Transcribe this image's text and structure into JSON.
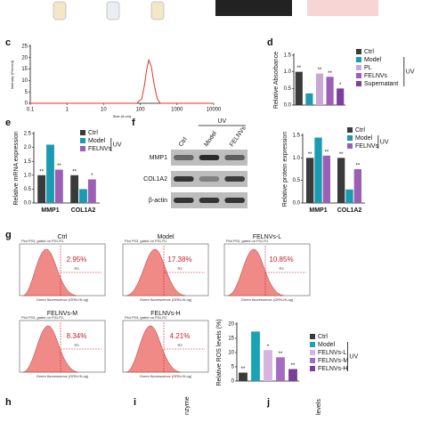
{
  "chart_data": [
    {
      "type": "line",
      "x_label": "Size (d.nm)",
      "y_label": "Intensity (Percent)",
      "log_x": true,
      "x": [
        0.1,
        80,
        110,
        130,
        150,
        170,
        200,
        240,
        290,
        350,
        10000
      ],
      "values": [
        0,
        0,
        2,
        8,
        15,
        19,
        16,
        8,
        2,
        0,
        0
      ],
      "color": "#e0362c",
      "xlim": [
        0.1,
        10000
      ],
      "xticks": [
        0.1,
        1,
        10,
        100,
        1000,
        10000
      ],
      "ylim": [
        0,
        25
      ],
      "yticks": [
        0,
        5,
        10,
        15,
        20,
        25
      ]
    },
    {
      "type": "bar",
      "y_label": "Relative Absorbance",
      "categories": [
        "Ctrl",
        "Model",
        "PL",
        "FELNVs",
        "Supernatant"
      ],
      "values": [
        1.0,
        0.35,
        0.95,
        0.85,
        0.5
      ],
      "colors": [
        "#3a3a3a",
        "#1a9bb0",
        "#c9a8d8",
        "#9b5fb5",
        "#7b3f9a"
      ],
      "significance": [
        "**",
        "",
        "**",
        "**",
        "*"
      ],
      "legend_group": {
        "label": "UV",
        "from": 1,
        "to": 4
      },
      "ylim": [
        0,
        1.5
      ],
      "yticks": [
        {
          "value": 0,
          "label": "0.0"
        },
        0.5,
        {
          "value": 1,
          "label": "1.0"
        },
        1.5
      ]
    },
    {
      "type": "grouped_bar",
      "y_label": "Relative mRNA expression",
      "categories": [
        "MMP1",
        "COL1A2"
      ],
      "series": [
        {
          "name": "Ctrl",
          "color": "#3a3a3a",
          "values": [
            1.0,
            1.0
          ],
          "significance": [
            "**",
            "**"
          ]
        },
        {
          "name": "Model",
          "color": "#1a9bb0",
          "values": [
            2.1,
            0.5
          ],
          "significance": [
            "",
            ""
          ]
        },
        {
          "name": "FELNVs",
          "color": "#9b5fb5",
          "values": [
            1.2,
            0.85
          ],
          "significance": [
            "**",
            "*"
          ]
        }
      ],
      "legend_group": {
        "label": "UV",
        "from": 1,
        "to": 2
      },
      "ylim": [
        0,
        2.5
      ],
      "yticks": [
        {
          "value": 0,
          "label": "0.0"
        },
        0.5,
        {
          "value": 1,
          "label": "1.0"
        },
        1.5,
        {
          "value": 2,
          "label": "2.0"
        },
        2.5
      ]
    },
    {
      "type": "grouped_bar",
      "y_label": "Relative protein expression",
      "categories": [
        "MMP1",
        "COL1A2"
      ],
      "series": [
        {
          "name": "Ctrl",
          "color": "#3a3a3a",
          "values": [
            1.0,
            1.0
          ],
          "significance": [
            "**",
            "**"
          ]
        },
        {
          "name": "Model",
          "color": "#1a9bb0",
          "values": [
            1.45,
            0.3
          ],
          "significance": [
            "",
            ""
          ]
        },
        {
          "name": "FELNVs",
          "color": "#9b5fb5",
          "values": [
            1.05,
            0.75
          ],
          "significance": [
            "**",
            "**"
          ]
        }
      ],
      "legend_group": {
        "label": "UV",
        "from": 1,
        "to": 2
      },
      "ylim": [
        0,
        1.5
      ],
      "yticks": [
        {
          "value": 0,
          "label": "0.0"
        },
        0.5,
        {
          "value": 1,
          "label": "1.0"
        },
        1.5
      ]
    },
    {
      "type": "bar",
      "y_label": "Relative ROS levels (%)",
      "categories": [
        "Ctrl",
        "Model",
        "FELNVs-L",
        "FELNVs-M",
        "FELNVs-H"
      ],
      "values": [
        2.95,
        17.38,
        10.85,
        8.34,
        4.21
      ],
      "colors": [
        "#3a3a3a",
        "#1aa3b5",
        "#d6b3e0",
        "#a36cc0",
        "#7a3f98"
      ],
      "significance": [
        "**",
        "",
        "*",
        "**",
        "**"
      ],
      "legend_group": {
        "label": "UV",
        "from": 1,
        "to": 4
      },
      "ylim": [
        0,
        20
      ],
      "yticks": [
        0,
        5,
        10,
        15,
        20
      ]
    }
  ],
  "panels": [
    "c",
    "d",
    "e",
    "f",
    "g",
    "h",
    "i",
    "j"
  ],
  "blot": {
    "uv": "UV",
    "lanes": [
      "Ctrl",
      "Model",
      "FELNVs"
    ],
    "rows": [
      "MMP1",
      "COL1A2",
      "β-actin"
    ]
  },
  "flow": {
    "subtitle": "Plot P03, gated on P01.R1",
    "x_label": "Green fluorescence (GRN-HLog)",
    "gate": "R3",
    "plots": [
      {
        "title": "Ctrl",
        "percent": "2.95%"
      },
      {
        "title": "Model",
        "percent": "17.38%"
      },
      {
        "title": "FELNVs-L",
        "percent": "10.85%"
      },
      {
        "title": "FELNVs-M",
        "percent": "8.34%"
      },
      {
        "title": "FELNVs-H",
        "percent": "4.21%"
      }
    ]
  },
  "partial_labels": [
    "nzyme",
    "levels"
  ]
}
